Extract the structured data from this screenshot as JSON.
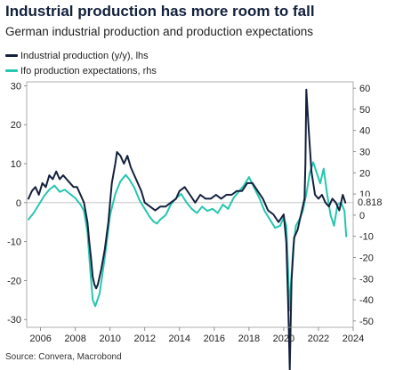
{
  "chart_data": {
    "type": "line",
    "title": "Industrial production has more room to fall",
    "subtitle": "German industrial production and production expectations",
    "source": "Source: Convera, Macrobond",
    "end_label": "0.818",
    "x_ticks": [
      "2006",
      "2008",
      "2010",
      "2012",
      "2014",
      "2016",
      "2018",
      "2020",
      "2022",
      "2024"
    ],
    "xlim": [
      2005.2,
      2024.0
    ],
    "left_axis": {
      "ylim": [
        -32,
        31
      ],
      "ticks": [
        "30",
        "20",
        "10",
        "0",
        "-10",
        "-20",
        "-30"
      ]
    },
    "right_axis": {
      "ylim": [
        -53,
        63
      ],
      "ticks": [
        "60",
        "50",
        "40",
        "30",
        "20",
        "10",
        "0",
        "-10",
        "-20",
        "-30",
        "-40",
        "-50"
      ]
    },
    "series": [
      {
        "name": "Industrial production (y/y), lhs",
        "axis": "left",
        "color": "#14213d",
        "x": [
          2005.3,
          2005.5,
          2005.7,
          2005.9,
          2006.1,
          2006.3,
          2006.5,
          2006.7,
          2006.9,
          2007.1,
          2007.3,
          2007.5,
          2007.7,
          2007.9,
          2008.1,
          2008.3,
          2008.5,
          2008.7,
          2008.8,
          2008.9,
          2009.0,
          2009.1,
          2009.2,
          2009.3,
          2009.5,
          2009.7,
          2009.9,
          2010.1,
          2010.3,
          2010.4,
          2010.6,
          2010.8,
          2011.0,
          2011.2,
          2011.4,
          2011.6,
          2011.8,
          2012.0,
          2012.3,
          2012.6,
          2012.9,
          2013.2,
          2013.5,
          2013.8,
          2014.0,
          2014.3,
          2014.6,
          2014.9,
          2015.2,
          2015.5,
          2015.8,
          2016.1,
          2016.4,
          2016.7,
          2017.0,
          2017.3,
          2017.6,
          2017.9,
          2018.2,
          2018.5,
          2018.8,
          2019.1,
          2019.4,
          2019.7,
          2020.0,
          2020.15,
          2020.25,
          2020.3,
          2020.35,
          2020.45,
          2020.6,
          2020.8,
          2021.0,
          2021.2,
          2021.25,
          2021.3,
          2021.45,
          2021.6,
          2021.8,
          2022.0,
          2022.2,
          2022.4,
          2022.6,
          2022.8,
          2023.0,
          2023.2,
          2023.4,
          2023.55
        ],
        "values": [
          1,
          3,
          4,
          2,
          5,
          4,
          7,
          6,
          8,
          6,
          7,
          6,
          5,
          4,
          4,
          2,
          0,
          -5,
          -10,
          -14,
          -19,
          -21,
          -22,
          -21,
          -17,
          -12,
          -5,
          5,
          10,
          13,
          12,
          10,
          12,
          9,
          7,
          5,
          3,
          0,
          -1,
          -2,
          -1,
          -1,
          0,
          1,
          3,
          4,
          2,
          0,
          2,
          1,
          1,
          2,
          1,
          2,
          2,
          3,
          3,
          5,
          5,
          3,
          1,
          -2,
          -3,
          -5,
          -3,
          -10,
          -25,
          -34,
          -43,
          -20,
          -9,
          -7,
          -3,
          1,
          10,
          29,
          18,
          8,
          2,
          1,
          2,
          0,
          -1,
          1,
          0,
          -2,
          2,
          0
        ]
      },
      {
        "name": "Ifo production expectations, rhs",
        "axis": "right",
        "color": "#26c6b0",
        "x": [
          2005.3,
          2005.6,
          2005.9,
          2006.2,
          2006.5,
          2006.8,
          2007.1,
          2007.4,
          2007.7,
          2008.0,
          2008.3,
          2008.5,
          2008.7,
          2008.85,
          2009.0,
          2009.15,
          2009.4,
          2009.7,
          2010.0,
          2010.3,
          2010.6,
          2010.9,
          2011.1,
          2011.4,
          2011.7,
          2012.0,
          2012.3,
          2012.5,
          2012.7,
          2012.9,
          2013.2,
          2013.5,
          2013.8,
          2014.1,
          2014.4,
          2014.7,
          2015.0,
          2015.3,
          2015.6,
          2015.9,
          2016.2,
          2016.5,
          2016.8,
          2017.1,
          2017.4,
          2017.7,
          2018.0,
          2018.3,
          2018.6,
          2018.9,
          2019.2,
          2019.5,
          2019.8,
          2020.0,
          2020.15,
          2020.25,
          2020.32,
          2020.4,
          2020.55,
          2020.7,
          2020.9,
          2021.1,
          2021.3,
          2021.5,
          2021.7,
          2021.9,
          2022.1,
          2022.3,
          2022.5,
          2022.7,
          2022.9,
          2023.1,
          2023.3,
          2023.5,
          2023.6
        ],
        "values": [
          -2,
          1,
          5,
          9,
          12,
          14,
          11,
          12,
          10,
          8,
          5,
          2,
          -8,
          -25,
          -40,
          -43,
          -37,
          -20,
          0,
          10,
          16,
          19,
          17,
          13,
          7,
          3,
          -1,
          -3,
          -4,
          -2,
          0,
          5,
          8,
          10,
          6,
          3,
          1,
          4,
          2,
          3,
          1,
          5,
          3,
          8,
          11,
          14,
          18,
          13,
          8,
          2,
          -2,
          -6,
          -5,
          -1,
          -5,
          -25,
          -45,
          -35,
          -15,
          -5,
          -2,
          2,
          10,
          20,
          25,
          20,
          15,
          22,
          10,
          0,
          -5,
          5,
          6,
          2,
          -10
        ]
      }
    ]
  }
}
